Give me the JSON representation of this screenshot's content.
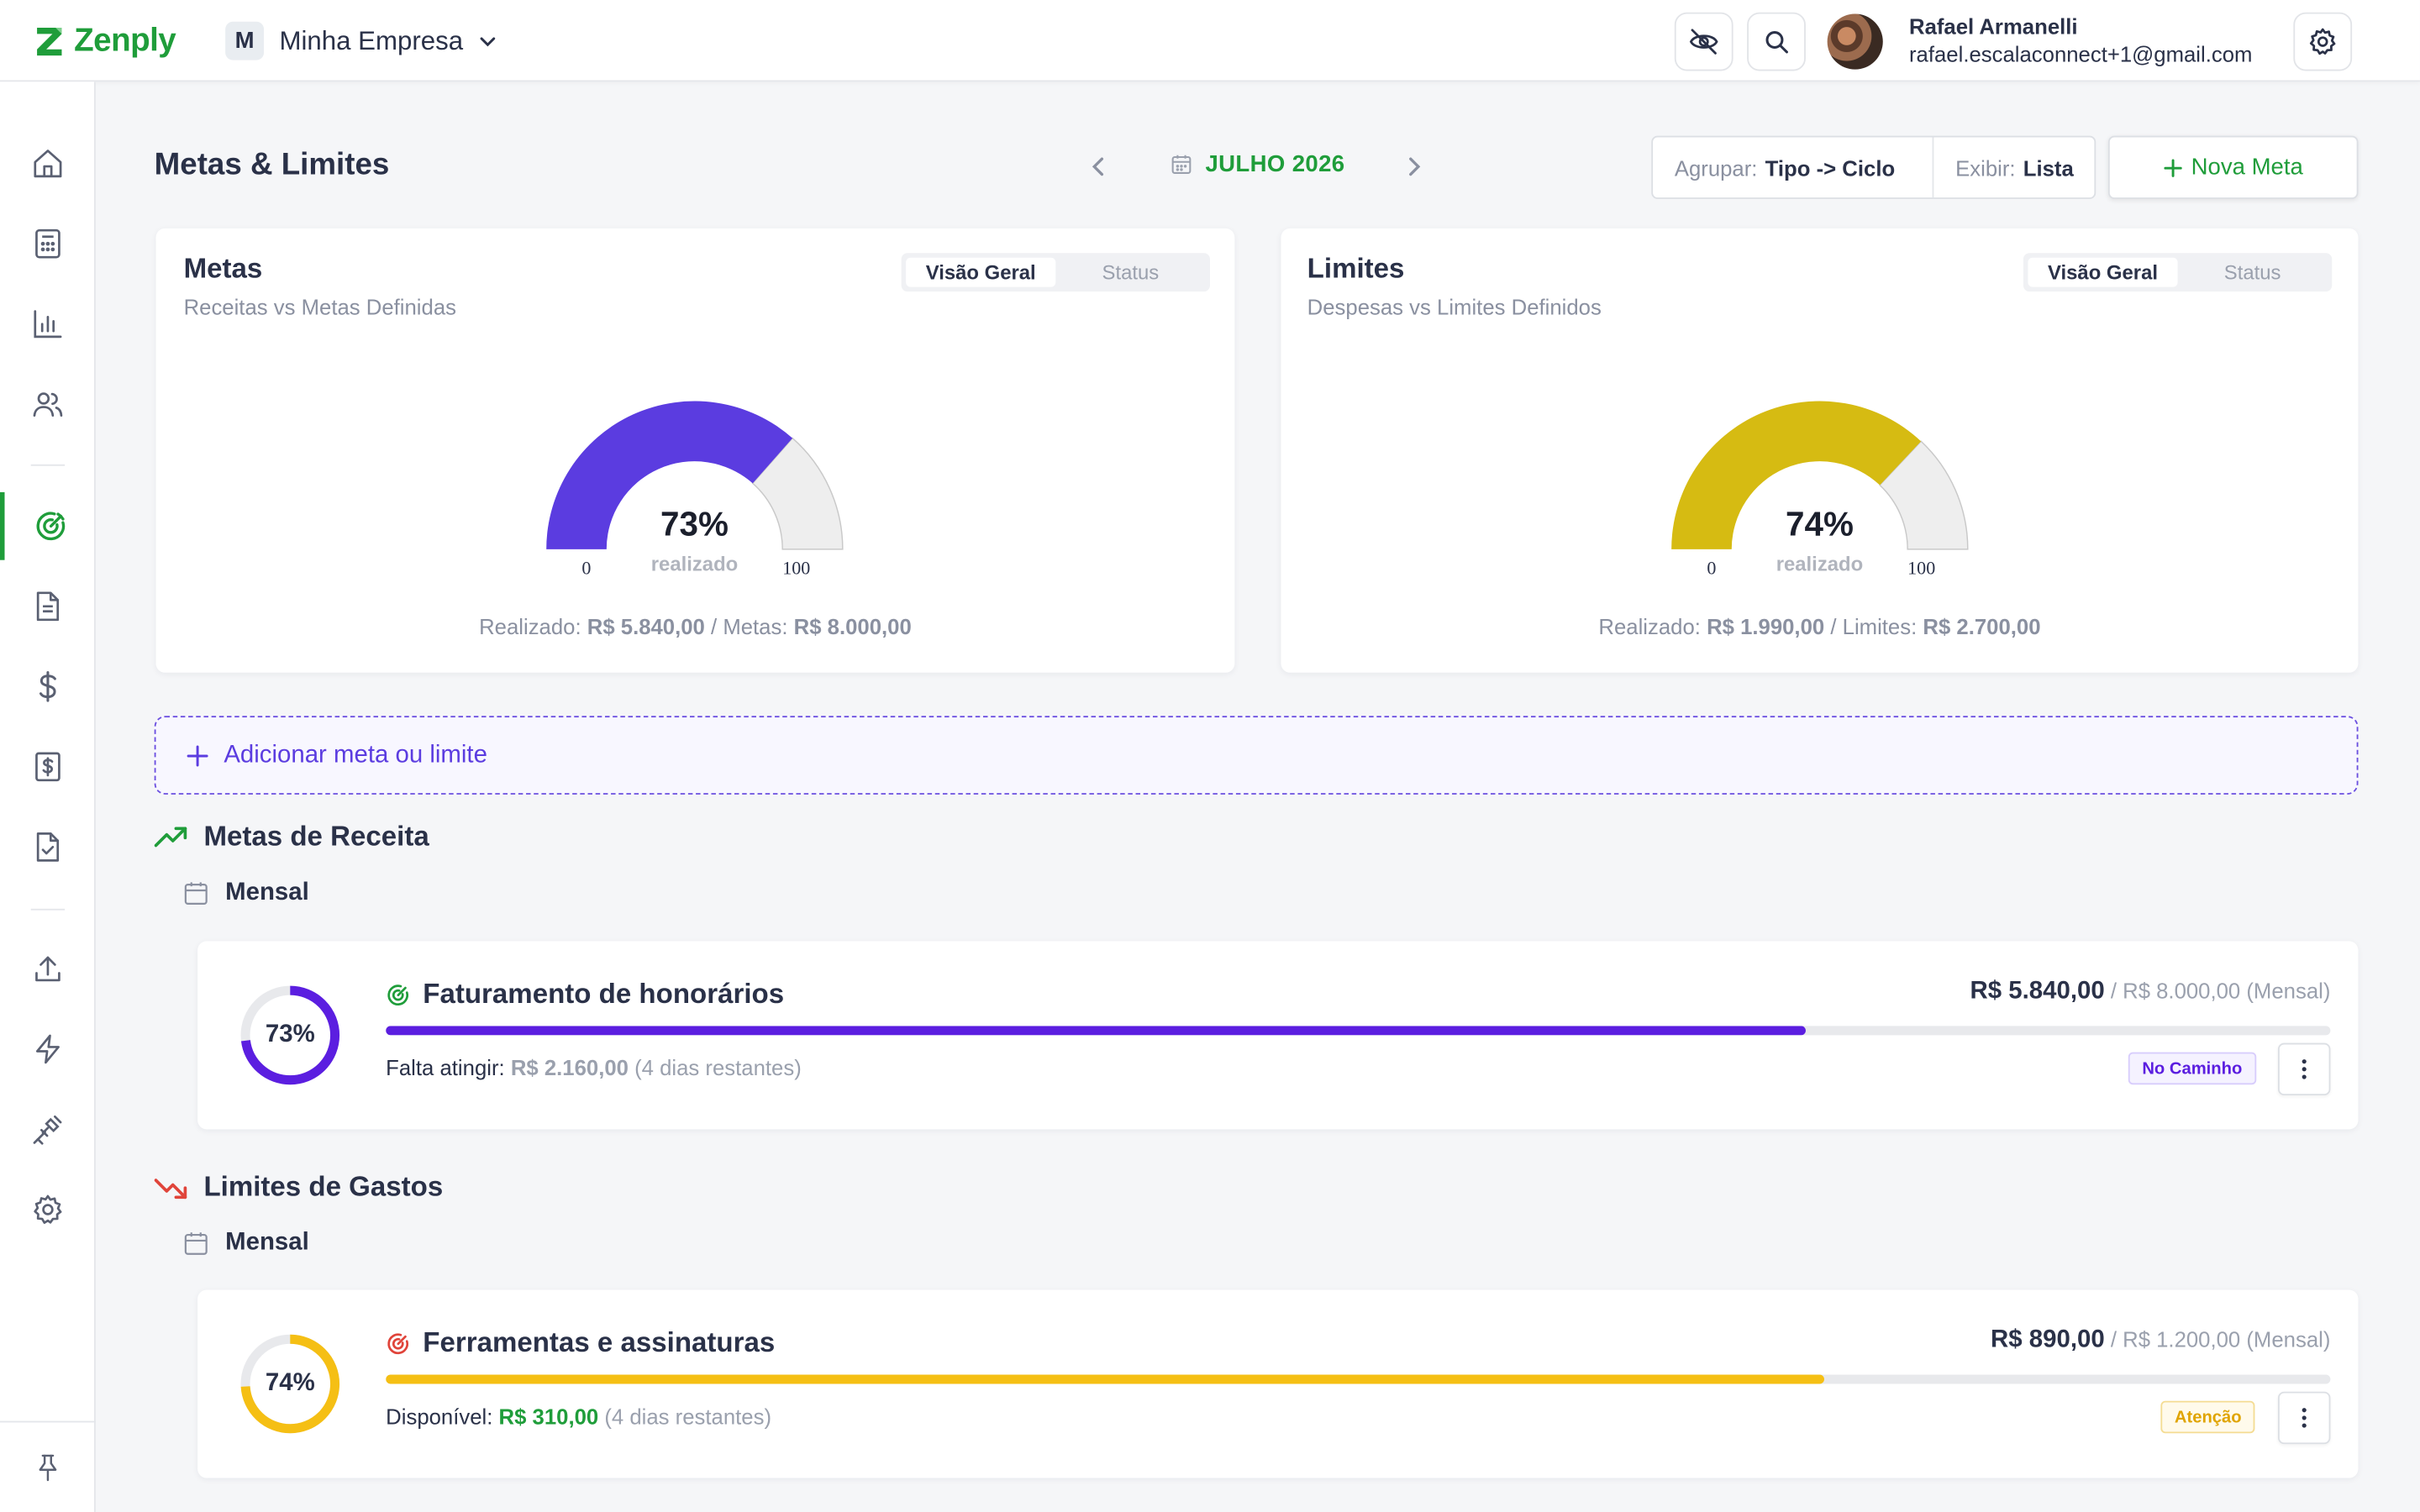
{
  "app": {
    "brand": "Zenply",
    "company_initial": "M",
    "company_name": "Minha Empresa"
  },
  "user": {
    "name": "Rafael Armanelli",
    "email": "rafael.escalaconnect+1@gmail.com"
  },
  "page": {
    "title": "Metas & Limites",
    "month": "JULHO 2026"
  },
  "filters": {
    "group_label": "Agrupar:",
    "group_value": "Tipo -> Ciclo",
    "show_label": "Exibir:",
    "show_value": "Lista"
  },
  "new_goal_button": "Nova Meta",
  "add_goal_or_limit": "Adicionar meta ou limite",
  "cards": [
    {
      "title": "Metas",
      "subtitle": "Receitas vs Metas Definidas",
      "toggle": [
        "Visão Geral",
        "Status"
      ],
      "percent": 73,
      "percent_label": "73%",
      "realizado_label": "realizado",
      "min": "0",
      "max": "100",
      "summary_label_1": "Realizado:",
      "summary_value_1": "R$ 5.840,00",
      "summary_label_2": "Metas:",
      "summary_value_2": "R$ 8.000,00",
      "color": "#5b3ce0"
    },
    {
      "title": "Limites",
      "subtitle": "Despesas vs Limites Definidos",
      "toggle": [
        "Visão Geral",
        "Status"
      ],
      "percent": 74,
      "percent_label": "74%",
      "realizado_label": "realizado",
      "min": "0",
      "max": "100",
      "summary_label_1": "Realizado:",
      "summary_value_1": "R$ 1.990,00",
      "summary_label_2": "Limites:",
      "summary_value_2": "R$ 2.700,00",
      "color": "#d6bb12"
    }
  ],
  "sections": [
    {
      "title": "Metas de Receita",
      "icon": "trending-up-icon",
      "cycle": "Mensal",
      "item": {
        "name": "Faturamento de honorários",
        "percent": 73,
        "percent_label": "73%",
        "amount": "R$ 5.840,00",
        "target": "/ R$ 8.000,00",
        "period": "(Mensal)",
        "foot_label": "Falta atingir:",
        "foot_value": "R$ 2.160,00",
        "foot_rest": "(4 dias restantes)",
        "status": "No Caminho",
        "color": "#5b1ee0"
      }
    },
    {
      "title": "Limites de Gastos",
      "icon": "trending-down-icon",
      "cycle": "Mensal",
      "item": {
        "name": "Ferramentas e assinaturas",
        "percent": 74,
        "percent_label": "74%",
        "amount": "R$ 890,00",
        "target": "/ R$ 1.200,00",
        "period": "(Mensal)",
        "foot_label": "Disponível:",
        "foot_value": "R$ 310,00",
        "foot_rest": "(4 dias restantes)",
        "status": "Atenção",
        "color": "#f5bf14"
      }
    }
  ]
}
